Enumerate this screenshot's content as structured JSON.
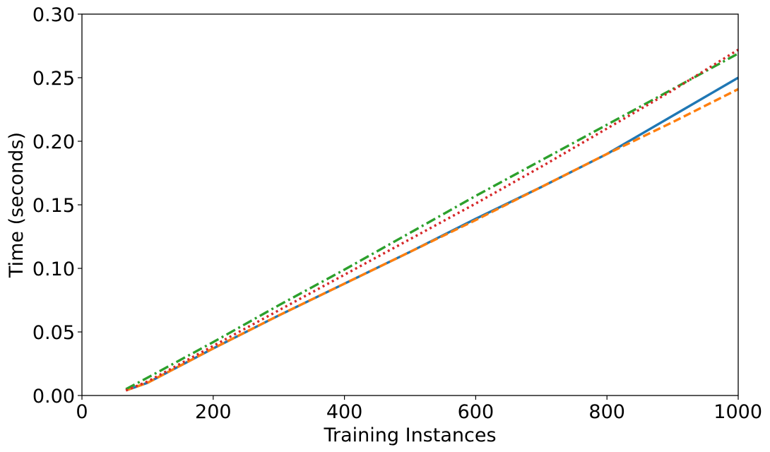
{
  "chart_data": {
    "type": "line",
    "title": "",
    "xlabel": "Training Instances",
    "ylabel": "Time (seconds)",
    "xlim": [
      0,
      1000
    ],
    "ylim": [
      0,
      0.3
    ],
    "xticks": [
      0,
      200,
      400,
      600,
      800,
      1000
    ],
    "xtick_labels": [
      "0",
      "200",
      "400",
      "600",
      "800",
      "1000"
    ],
    "yticks": [
      0,
      0.05,
      0.1,
      0.15,
      0.2,
      0.25,
      0.3
    ],
    "ytick_labels": [
      "0.00",
      "0.05",
      "0.10",
      "0.15",
      "0.20",
      "0.25",
      "0.30"
    ],
    "grid": false,
    "legend": null,
    "x": [
      67,
      100,
      200,
      300,
      400,
      500,
      600,
      700,
      800,
      900,
      1000
    ],
    "series": [
      {
        "color": "#1f77b4",
        "style": "solid",
        "values": [
          0.004,
          0.01,
          0.037,
          0.063,
          0.088,
          0.113,
          0.139,
          0.164,
          0.19,
          0.22,
          0.25
        ]
      },
      {
        "color": "#ff7f0e",
        "style": "dashed",
        "values": [
          0.004,
          0.01,
          0.037,
          0.063,
          0.088,
          0.113,
          0.138,
          0.164,
          0.19,
          0.215,
          0.241
        ]
      },
      {
        "color": "#2ca02c",
        "style": "dashdot",
        "values": [
          0.005,
          0.014,
          0.042,
          0.071,
          0.099,
          0.128,
          0.157,
          0.185,
          0.213,
          0.241,
          0.269
        ]
      },
      {
        "color": "#d62728",
        "style": "dotted",
        "values": [
          0.004,
          0.011,
          0.039,
          0.067,
          0.095,
          0.123,
          0.151,
          0.18,
          0.21,
          0.24,
          0.272
        ]
      }
    ]
  }
}
